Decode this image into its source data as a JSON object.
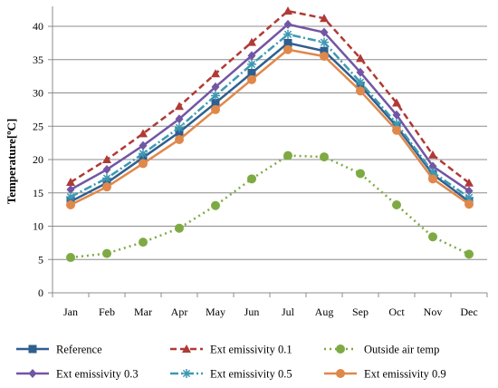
{
  "chart_data": {
    "type": "line",
    "title": "",
    "xlabel": "",
    "ylabel": "Temperature[ºC]",
    "categories": [
      "Jan",
      "Feb",
      "Mar",
      "Apr",
      "May",
      "Jun",
      "Jul",
      "Aug",
      "Sep",
      "Oct",
      "Nov",
      "Dec"
    ],
    "ylim": [
      0,
      43
    ],
    "yticks": [
      "0",
      "5",
      "10",
      "15",
      "20",
      "25",
      "30",
      "35",
      "40"
    ],
    "grid": "horizontal",
    "legend_position": "bottom",
    "series": [
      {
        "name": "Reference",
        "color": "#2f5f8f",
        "dash": "solid",
        "marker": "square",
        "values": [
          13.7,
          16.5,
          20.3,
          24.1,
          28.5,
          33.0,
          37.5,
          36.3,
          31.1,
          25.0,
          17.8,
          13.7
        ]
      },
      {
        "name": "Ext emissivity 0.1",
        "color": "#b03a36",
        "dash": "dash",
        "marker": "triangle",
        "values": [
          16.6,
          20.0,
          23.9,
          28.0,
          32.9,
          37.6,
          42.3,
          41.2,
          35.2,
          28.5,
          20.7,
          16.5
        ]
      },
      {
        "name": "Outside air temp",
        "color": "#7eaa43",
        "dash": "dot",
        "marker": "circle",
        "values": [
          5.3,
          5.9,
          7.6,
          9.7,
          13.1,
          17.1,
          20.6,
          20.4,
          17.9,
          13.2,
          8.4,
          5.8
        ]
      },
      {
        "name": "Ext emissivity 0.3",
        "color": "#7256a4",
        "dash": "solid",
        "marker": "diamond",
        "values": [
          15.5,
          18.5,
          22.1,
          26.1,
          30.9,
          35.6,
          40.3,
          39.1,
          33.1,
          26.7,
          19.0,
          15.3
        ]
      },
      {
        "name": "Ext emissivity 0.5",
        "color": "#3d99b3",
        "dash": "dashdot",
        "marker": "star",
        "values": [
          14.4,
          17.2,
          20.9,
          24.8,
          29.6,
          34.3,
          38.8,
          37.6,
          31.6,
          25.4,
          18.1,
          14.3
        ]
      },
      {
        "name": "Ext emissivity 0.9",
        "color": "#e0884a",
        "dash": "solid",
        "marker": "circle",
        "values": [
          13.2,
          15.9,
          19.4,
          23.0,
          27.5,
          32.0,
          36.5,
          35.5,
          30.3,
          24.4,
          17.1,
          13.3
        ]
      }
    ]
  }
}
